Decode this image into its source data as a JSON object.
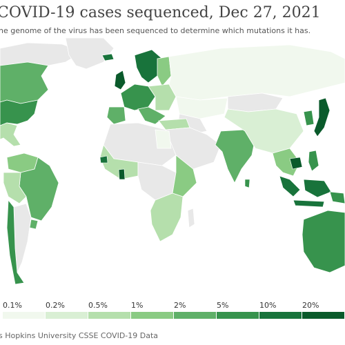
{
  "header": {
    "title": "COVID-19 cases sequenced, Dec 27, 2021",
    "subtitle": "he genome of the virus has been sequenced to determine which mutations it has."
  },
  "map": {
    "colors": {
      "no_data": "#e8e8e8",
      "c0": "#f1f8ee",
      "c1": "#d9efd4",
      "c2": "#b5dfac",
      "c3": "#8acb83",
      "c4": "#5fb068",
      "c5": "#37934d",
      "c6": "#18733b",
      "c7": "#0a5a2b"
    }
  },
  "legend": {
    "ticks": [
      "0.1%",
      "0.2%",
      "0.5%",
      "1%",
      "2%",
      "5%",
      "10%",
      "20%"
    ],
    "colors": [
      "#f1f8ee",
      "#d9efd4",
      "#b5dfac",
      "#8acb83",
      "#5fb068",
      "#37934d",
      "#18733b",
      "#0a5a2b"
    ]
  },
  "footer": {
    "source": "s Hopkins University CSSE COVID-19 Data"
  }
}
